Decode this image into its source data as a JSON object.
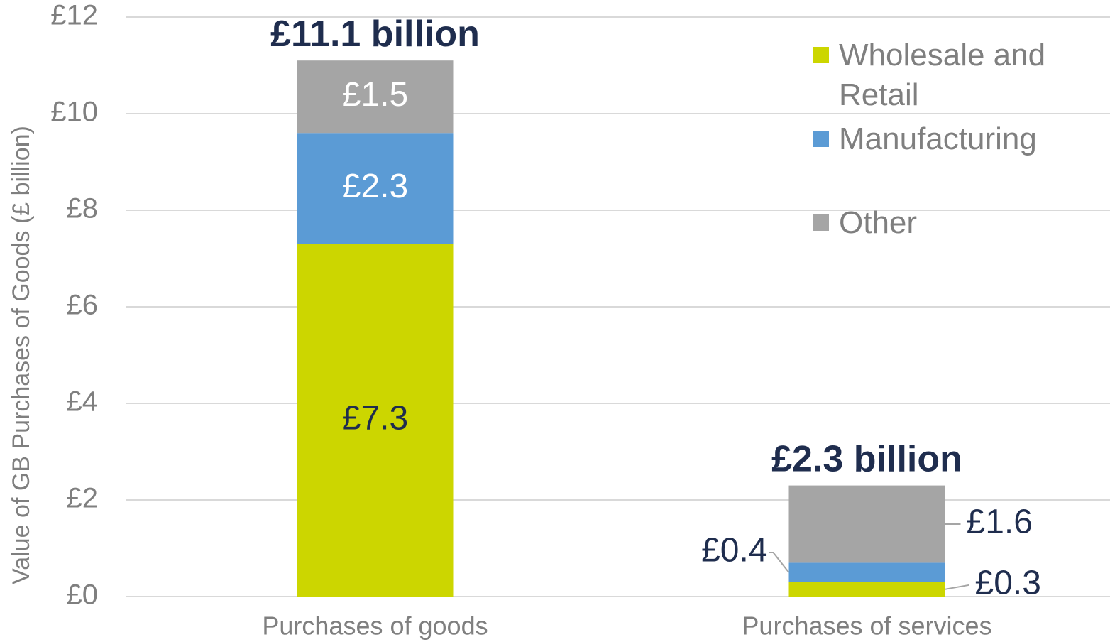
{
  "chart_data": {
    "type": "stacked_bar",
    "y_label": "Value of GB Purchases of Goods (£ billion)",
    "categories": [
      "Purchases of goods",
      "Purchases of services"
    ],
    "series": [
      {
        "name": "Wholesale and Retail",
        "color": "#ccd600",
        "values": [
          7.3,
          0.3
        ],
        "value_labels": [
          "£7.3",
          "£0.3"
        ]
      },
      {
        "name": "Manufacturing",
        "color": "#5b9bd5",
        "values": [
          2.3,
          0.4
        ],
        "value_labels": [
          "£2.3",
          "£0.4"
        ]
      },
      {
        "name": "Other",
        "color": "#a5a5a5",
        "values": [
          1.5,
          1.6
        ],
        "value_labels": [
          "£1.5",
          "£1.6"
        ]
      }
    ],
    "totals": {
      "values": [
        11.1,
        2.3
      ],
      "labels": [
        "£11.1 billion",
        "£2.3 billion"
      ]
    },
    "ylim": [
      0,
      12
    ],
    "yticks": [
      {
        "value": 0,
        "label": "£0"
      },
      {
        "value": 2,
        "label": "£2"
      },
      {
        "value": 4,
        "label": "£4"
      },
      {
        "value": 6,
        "label": "£6"
      },
      {
        "value": 8,
        "label": "£8"
      },
      {
        "value": 10,
        "label": "£10"
      },
      {
        "value": 12,
        "label": "£12"
      }
    ],
    "grid": true,
    "legend": "top-right"
  }
}
